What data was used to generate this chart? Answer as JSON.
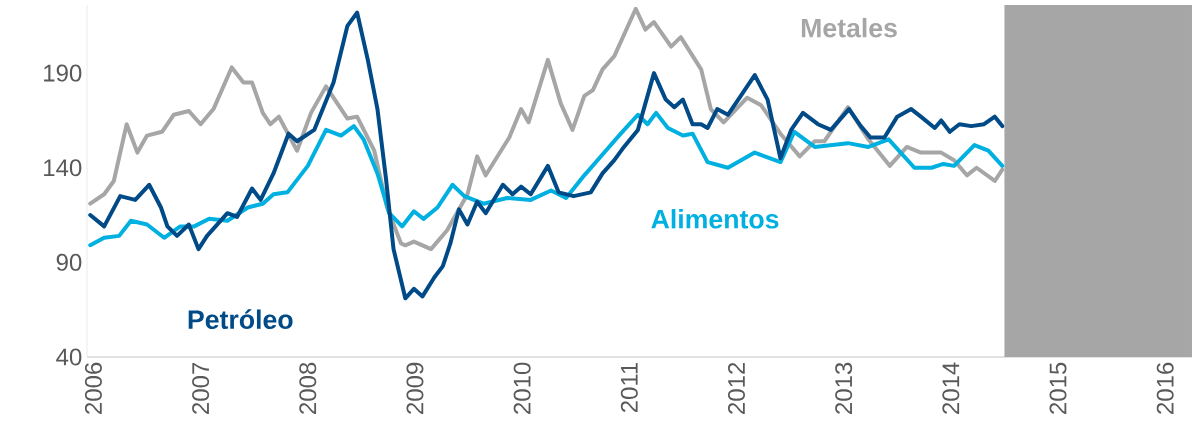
{
  "chart_data": {
    "type": "line",
    "xlim": [
      2005.94,
      2016.25
    ],
    "ylim": [
      40,
      226
    ],
    "xticks": [
      2006,
      2007,
      2008,
      2009,
      2010,
      2011,
      2012,
      2013,
      2014,
      2015,
      2016
    ],
    "yticks": [
      40,
      90,
      140,
      190
    ],
    "grid": false,
    "legend": false,
    "marker": "none",
    "line_style": "solid",
    "bands": [
      {
        "axis": "x",
        "from": 2014.5,
        "to": 2016.25,
        "color": "#a6a6a6"
      }
    ],
    "series": [
      {
        "name": "Metales",
        "color": "#a6a6a6",
        "x": [
          2005.97,
          2006.1,
          2006.19,
          2006.31,
          2006.41,
          2006.5,
          2006.64,
          2006.75,
          2006.89,
          2007.0,
          2007.12,
          2007.29,
          2007.4,
          2007.48,
          2007.58,
          2007.65,
          2007.73,
          2007.9,
          2008.03,
          2008.17,
          2008.37,
          2008.46,
          2008.62,
          2008.74,
          2008.87,
          2008.91,
          2008.99,
          2009.15,
          2009.3,
          2009.49,
          2009.58,
          2009.66,
          2009.88,
          2009.99,
          2010.06,
          2010.24,
          2010.36,
          2010.47,
          2010.58,
          2010.66,
          2010.75,
          2010.86,
          2011.06,
          2011.15,
          2011.23,
          2011.39,
          2011.48,
          2011.67,
          2011.76,
          2011.88,
          2012.1,
          2012.23,
          2012.41,
          2012.59,
          2012.73,
          2012.82,
          2013.04,
          2013.23,
          2013.43,
          2013.59,
          2013.72,
          2013.91,
          2014.03,
          2014.15,
          2014.24,
          2014.41,
          2014.48
        ],
        "values": [
          121,
          126,
          133,
          163,
          148,
          157,
          159,
          168,
          170,
          163,
          171,
          193,
          185,
          185,
          169,
          163,
          167,
          149,
          169,
          183,
          166,
          167,
          149,
          119,
          100,
          99,
          101,
          97,
          107,
          126,
          146,
          136,
          156,
          171,
          164,
          197,
          174,
          160,
          178,
          181,
          192,
          199,
          224,
          213,
          217,
          204,
          209,
          192,
          171,
          164,
          177,
          173,
          158,
          146,
          154,
          154,
          172,
          155,
          141,
          151,
          148,
          148,
          144,
          136,
          140,
          133,
          139
        ]
      },
      {
        "name": "Alimentos",
        "color": "#00b0e0",
        "x": [
          2005.97,
          2006.1,
          2006.24,
          2006.35,
          2006.5,
          2006.66,
          2006.81,
          2006.94,
          2007.08,
          2007.25,
          2007.44,
          2007.58,
          2007.68,
          2007.81,
          2008.0,
          2008.17,
          2008.31,
          2008.43,
          2008.52,
          2008.65,
          2008.76,
          2008.88,
          2008.99,
          2009.08,
          2009.21,
          2009.35,
          2009.46,
          2009.64,
          2009.86,
          2010.08,
          2010.27,
          2010.41,
          2010.58,
          2010.75,
          2010.92,
          2011.08,
          2011.17,
          2011.25,
          2011.36,
          2011.5,
          2011.59,
          2011.73,
          2011.92,
          2012.17,
          2012.41,
          2012.54,
          2012.73,
          2013.04,
          2013.23,
          2013.42,
          2013.66,
          2013.82,
          2013.93,
          2014.03,
          2014.22,
          2014.35,
          2014.48
        ],
        "values": [
          99,
          103,
          104,
          112,
          110,
          103,
          109,
          109,
          113,
          112,
          119,
          121,
          126,
          127,
          141,
          160,
          157,
          162,
          155,
          137,
          116,
          109,
          117,
          113,
          119,
          131,
          125,
          121,
          124,
          123,
          128,
          124,
          136,
          147,
          158,
          168,
          163,
          169,
          161,
          157,
          158,
          143,
          140,
          148,
          143,
          159,
          151,
          153,
          151,
          155,
          140,
          140,
          142,
          141,
          152,
          149,
          141
        ]
      },
      {
        "name": "Petróleo",
        "color": "#004b87",
        "x": [
          2005.97,
          2006.1,
          2006.25,
          2006.39,
          2006.52,
          2006.63,
          2006.69,
          2006.78,
          2006.89,
          2006.98,
          2007.06,
          2007.25,
          2007.34,
          2007.48,
          2007.56,
          2007.68,
          2007.82,
          2007.9,
          2008.06,
          2008.24,
          2008.37,
          2008.46,
          2008.56,
          2008.65,
          2008.73,
          2008.8,
          2008.91,
          2008.99,
          2009.07,
          2009.18,
          2009.26,
          2009.33,
          2009.41,
          2009.49,
          2009.58,
          2009.66,
          2009.82,
          2009.91,
          2009.99,
          2010.08,
          2010.24,
          2010.34,
          2010.48,
          2010.64,
          2010.75,
          2010.86,
          2010.95,
          2011.08,
          2011.15,
          2011.23,
          2011.34,
          2011.42,
          2011.5,
          2011.59,
          2011.67,
          2011.73,
          2011.82,
          2011.92,
          2012.04,
          2012.17,
          2012.29,
          2012.41,
          2012.51,
          2012.62,
          2012.76,
          2012.88,
          2013.05,
          2013.16,
          2013.25,
          2013.38,
          2013.5,
          2013.63,
          2013.72,
          2013.85,
          2013.91,
          2013.99,
          2014.08,
          2014.19,
          2014.31,
          2014.41,
          2014.48
        ],
        "values": [
          115,
          109,
          125,
          123,
          131,
          119,
          109,
          104,
          110,
          97,
          104,
          116,
          114,
          129,
          123,
          137,
          158,
          154,
          160,
          185,
          215,
          222,
          197,
          171,
          134,
          97,
          71,
          76,
          72,
          82,
          88,
          100,
          118,
          110,
          122,
          116,
          131,
          126,
          130,
          126,
          141,
          127,
          125,
          127,
          137,
          144,
          151,
          160,
          174,
          190,
          176,
          172,
          176,
          163,
          163,
          161,
          171,
          168,
          178,
          189,
          176,
          145,
          160,
          169,
          163,
          160,
          171,
          162,
          156,
          156,
          167,
          171,
          167,
          161,
          165,
          159,
          163,
          162,
          163,
          167,
          162
        ]
      }
    ]
  }
}
